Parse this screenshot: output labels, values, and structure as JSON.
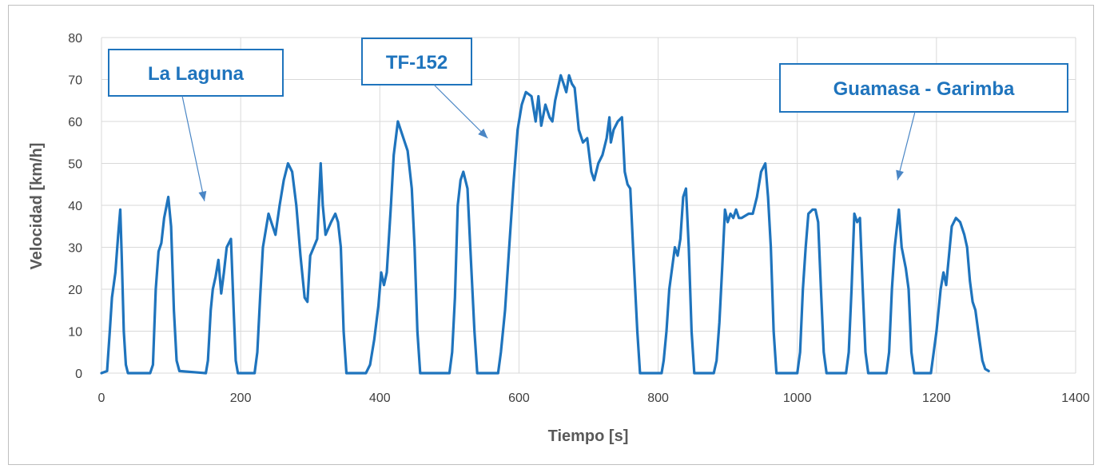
{
  "chart_data": {
    "type": "line",
    "title": "",
    "xlabel": "Tiempo [s]",
    "ylabel": "Velocidad [km/h]",
    "xlim": [
      0,
      1400
    ],
    "ylim": [
      0,
      80
    ],
    "x_ticks": [
      0,
      200,
      400,
      600,
      800,
      1000,
      1200,
      1400
    ],
    "y_ticks": [
      0,
      10,
      20,
      30,
      40,
      50,
      60,
      70,
      80
    ],
    "grid": true,
    "line_color": "#1f74bd",
    "series": [
      {
        "points": [
          [
            0,
            0
          ],
          [
            8,
            0.5
          ],
          [
            12,
            10
          ],
          [
            15,
            18
          ],
          [
            20,
            24
          ],
          [
            24,
            33
          ],
          [
            27,
            39
          ],
          [
            29,
            28
          ],
          [
            32,
            10
          ],
          [
            35,
            2
          ],
          [
            38,
            0
          ],
          [
            70,
            0
          ],
          [
            74,
            2
          ],
          [
            78,
            20
          ],
          [
            82,
            29
          ],
          [
            86,
            31
          ],
          [
            90,
            37
          ],
          [
            96,
            42
          ],
          [
            100,
            35
          ],
          [
            104,
            15
          ],
          [
            108,
            3
          ],
          [
            112,
            0.5
          ],
          [
            150,
            0
          ],
          [
            153,
            3
          ],
          [
            157,
            15
          ],
          [
            160,
            20
          ],
          [
            164,
            23
          ],
          [
            168,
            27
          ],
          [
            172,
            19
          ],
          [
            176,
            24
          ],
          [
            180,
            30
          ],
          [
            186,
            32
          ],
          [
            190,
            15
          ],
          [
            193,
            3
          ],
          [
            196,
            0
          ],
          [
            220,
            0
          ],
          [
            224,
            5
          ],
          [
            228,
            18
          ],
          [
            232,
            30
          ],
          [
            240,
            38
          ],
          [
            246,
            35
          ],
          [
            250,
            33
          ],
          [
            256,
            40
          ],
          [
            262,
            46
          ],
          [
            268,
            50
          ],
          [
            274,
            48
          ],
          [
            280,
            40
          ],
          [
            286,
            28
          ],
          [
            292,
            18
          ],
          [
            296,
            17
          ],
          [
            300,
            28
          ],
          [
            305,
            30
          ],
          [
            310,
            32
          ],
          [
            315,
            50
          ],
          [
            318,
            40
          ],
          [
            322,
            33
          ],
          [
            330,
            36
          ],
          [
            336,
            38
          ],
          [
            340,
            36
          ],
          [
            344,
            30
          ],
          [
            348,
            10
          ],
          [
            352,
            0
          ],
          [
            380,
            0
          ],
          [
            386,
            2
          ],
          [
            392,
            8
          ],
          [
            398,
            16
          ],
          [
            402,
            24
          ],
          [
            406,
            21
          ],
          [
            410,
            24
          ],
          [
            416,
            40
          ],
          [
            420,
            52
          ],
          [
            426,
            60
          ],
          [
            432,
            57
          ],
          [
            440,
            53
          ],
          [
            446,
            44
          ],
          [
            450,
            30
          ],
          [
            454,
            10
          ],
          [
            458,
            0
          ],
          [
            470,
            0
          ],
          [
            500,
            0
          ],
          [
            504,
            5
          ],
          [
            508,
            18
          ],
          [
            512,
            40
          ],
          [
            516,
            46
          ],
          [
            520,
            48
          ],
          [
            526,
            44
          ],
          [
            530,
            30
          ],
          [
            536,
            10
          ],
          [
            540,
            0
          ],
          [
            570,
            0
          ],
          [
            574,
            5
          ],
          [
            580,
            15
          ],
          [
            586,
            30
          ],
          [
            592,
            45
          ],
          [
            598,
            58
          ],
          [
            604,
            64
          ],
          [
            610,
            67
          ],
          [
            618,
            66
          ],
          [
            624,
            60
          ],
          [
            628,
            66
          ],
          [
            632,
            59
          ],
          [
            638,
            64
          ],
          [
            644,
            61
          ],
          [
            648,
            60
          ],
          [
            652,
            65
          ],
          [
            656,
            68
          ],
          [
            660,
            71
          ],
          [
            664,
            69
          ],
          [
            668,
            67
          ],
          [
            672,
            71
          ],
          [
            676,
            69
          ],
          [
            680,
            68
          ],
          [
            686,
            58
          ],
          [
            692,
            55
          ],
          [
            698,
            56
          ],
          [
            704,
            48
          ],
          [
            708,
            46
          ],
          [
            714,
            50
          ],
          [
            720,
            52
          ],
          [
            726,
            56
          ],
          [
            730,
            61
          ],
          [
            732,
            55
          ],
          [
            736,
            58
          ],
          [
            742,
            60
          ],
          [
            748,
            61
          ],
          [
            752,
            48
          ],
          [
            756,
            45
          ],
          [
            760,
            44
          ],
          [
            764,
            30
          ],
          [
            770,
            10
          ],
          [
            774,
            0
          ],
          [
            805,
            0
          ],
          [
            808,
            3
          ],
          [
            812,
            10
          ],
          [
            816,
            20
          ],
          [
            820,
            25
          ],
          [
            824,
            30
          ],
          [
            828,
            28
          ],
          [
            832,
            32
          ],
          [
            836,
            42
          ],
          [
            840,
            44
          ],
          [
            844,
            30
          ],
          [
            848,
            10
          ],
          [
            852,
            0
          ],
          [
            880,
            0
          ],
          [
            884,
            3
          ],
          [
            888,
            12
          ],
          [
            892,
            25
          ],
          [
            896,
            39
          ],
          [
            900,
            36
          ],
          [
            904,
            38
          ],
          [
            908,
            37
          ],
          [
            912,
            39
          ],
          [
            916,
            37
          ],
          [
            920,
            37
          ],
          [
            930,
            38
          ],
          [
            936,
            38
          ],
          [
            942,
            42
          ],
          [
            948,
            48
          ],
          [
            954,
            50
          ],
          [
            958,
            42
          ],
          [
            962,
            30
          ],
          [
            966,
            10
          ],
          [
            970,
            0
          ],
          [
            1000,
            0
          ],
          [
            1004,
            5
          ],
          [
            1008,
            20
          ],
          [
            1012,
            30
          ],
          [
            1016,
            38
          ],
          [
            1022,
            39
          ],
          [
            1026,
            39
          ],
          [
            1030,
            36
          ],
          [
            1034,
            20
          ],
          [
            1038,
            5
          ],
          [
            1042,
            0
          ],
          [
            1070,
            0
          ],
          [
            1074,
            5
          ],
          [
            1078,
            20
          ],
          [
            1082,
            38
          ],
          [
            1086,
            36
          ],
          [
            1090,
            37
          ],
          [
            1094,
            20
          ],
          [
            1098,
            5
          ],
          [
            1102,
            0
          ],
          [
            1128,
            0
          ],
          [
            1132,
            5
          ],
          [
            1136,
            20
          ],
          [
            1140,
            30
          ],
          [
            1146,
            39
          ],
          [
            1150,
            30
          ],
          [
            1156,
            25
          ],
          [
            1160,
            20
          ],
          [
            1164,
            5
          ],
          [
            1168,
            0
          ],
          [
            1192,
            0
          ],
          [
            1196,
            5
          ],
          [
            1200,
            10
          ],
          [
            1206,
            20
          ],
          [
            1210,
            24
          ],
          [
            1214,
            21
          ],
          [
            1218,
            28
          ],
          [
            1222,
            35
          ],
          [
            1228,
            37
          ],
          [
            1234,
            36
          ],
          [
            1240,
            33
          ],
          [
            1244,
            30
          ],
          [
            1248,
            22
          ],
          [
            1252,
            17
          ],
          [
            1256,
            15
          ],
          [
            1260,
            10
          ],
          [
            1266,
            3
          ],
          [
            1270,
            1
          ],
          [
            1275,
            0.5
          ]
        ]
      }
    ],
    "annotations": [
      {
        "text": "La Laguna",
        "target": [
          148,
          41
        ]
      },
      {
        "text": "TF-152",
        "target": [
          555,
          56
        ]
      },
      {
        "text": "Guamasa - Garimba",
        "target": [
          1144,
          46
        ]
      }
    ]
  }
}
